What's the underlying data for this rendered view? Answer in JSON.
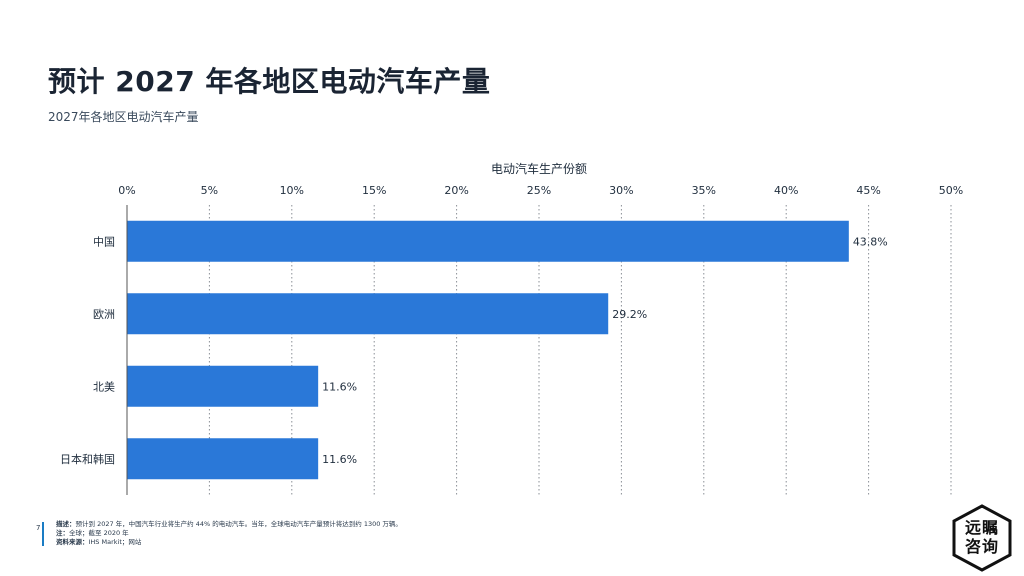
{
  "page": {
    "title": "预计 2027 年各地区电动汽车产量",
    "subtitle": "2027年各地区电动汽车产量",
    "page_number": "7"
  },
  "chart_data": {
    "type": "bar",
    "orientation": "horizontal",
    "xlabel": "电动汽车生产份额",
    "xlim": [
      0,
      50
    ],
    "x_ticks": [
      "0%",
      "5%",
      "10%",
      "15%",
      "20%",
      "25%",
      "30%",
      "35%",
      "40%",
      "45%",
      "50%"
    ],
    "categories": [
      "中国",
      "欧洲",
      "北美",
      "日本和韩国"
    ],
    "values": [
      43.8,
      29.2,
      11.6,
      11.6
    ],
    "data_labels": [
      "43.8%",
      "29.2%",
      "11.6%",
      "11.6%"
    ],
    "grid": "vertical dotted",
    "bar_color": "#2a78d8"
  },
  "footer": {
    "desc_label": "描述：",
    "desc_text": "预计到 2027 年，中国汽车行业将生产约 44% 的电动汽车。当年，全球电动汽车产量预计将达到约 1300 万辆。",
    "note_label": "注：",
    "note_text": "全球；截至 2020 年",
    "source_label": "资料来源：",
    "source_text": "IHS Markit；网站"
  },
  "logo": {
    "line1": "远瞩",
    "line2": "咨询"
  }
}
